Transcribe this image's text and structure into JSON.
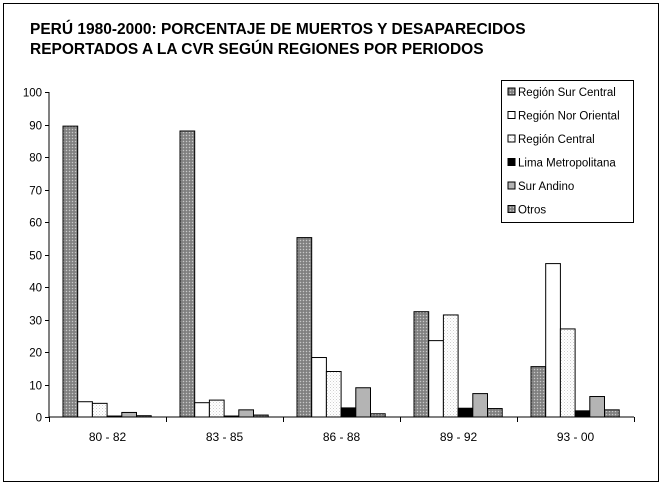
{
  "chart_data": {
    "type": "bar",
    "title_lines": [
      "PERÚ 1980-2000: PORCENTAJE DE MUERTOS Y DESAPARECIDOS",
      "REPORTADOS A LA CVR SEGÚN REGIONES POR PERIODOS"
    ],
    "xlabel": "",
    "ylabel": "",
    "ylim": [
      0,
      100
    ],
    "yticks": [
      0,
      10,
      20,
      30,
      40,
      50,
      60,
      70,
      80,
      90,
      100
    ],
    "categories": [
      "80 - 82",
      "83 - 85",
      "86 - 88",
      "89 - 92",
      "93 - 00"
    ],
    "series": [
      {
        "name": "Región Sur Central",
        "values": [
          89.5,
          88.0,
          55.2,
          32.4,
          15.5
        ],
        "fill": "#a6a6a6",
        "pattern": "dots"
      },
      {
        "name": "Región Nor Oriental",
        "values": [
          4.7,
          4.4,
          18.3,
          23.5,
          47.2
        ],
        "fill": "#ffffff",
        "pattern": "none"
      },
      {
        "name": "Región Central",
        "values": [
          4.2,
          5.2,
          14.0,
          31.4,
          27.1
        ],
        "fill": "#ffffff",
        "pattern": "fine"
      },
      {
        "name": "Lima Metropolitana",
        "values": [
          0.3,
          0.3,
          2.8,
          2.7,
          1.9
        ],
        "fill": "#000000",
        "pattern": "none"
      },
      {
        "name": "Sur Andino",
        "values": [
          1.4,
          2.2,
          9.0,
          7.2,
          6.3
        ],
        "fill": "#b4b4b4",
        "pattern": "none"
      },
      {
        "name": "Otros",
        "values": [
          0.4,
          0.6,
          1.0,
          2.6,
          2.2
        ],
        "fill": "#b4b4b4",
        "pattern": "dots"
      }
    ],
    "grid": false,
    "legend_position": "top-right"
  }
}
